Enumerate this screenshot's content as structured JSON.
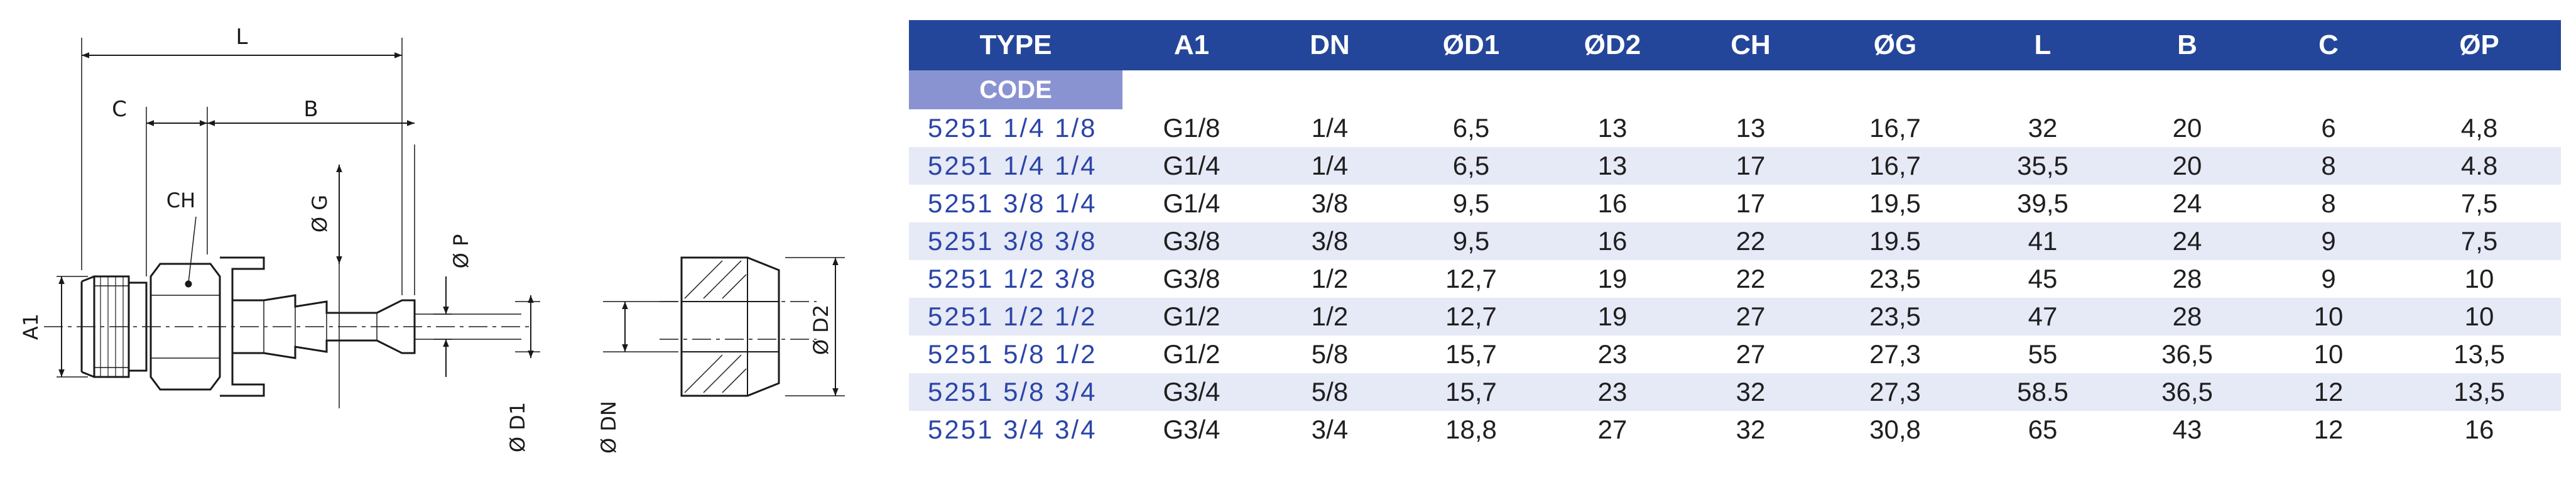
{
  "drawing": {
    "dims": {
      "L": "L",
      "C": "C",
      "B": "B",
      "CH": "CH",
      "G": "Ø G",
      "P": "Ø P",
      "A1": "A1",
      "D1": "Ø D1",
      "DN": "Ø DN",
      "D2": "Ø D2"
    }
  },
  "table": {
    "headers": [
      "TYPE",
      "A1",
      "DN",
      "ØD1",
      "ØD2",
      "CH",
      "ØG",
      "L",
      "B",
      "C",
      "ØP"
    ],
    "code_label": "CODE",
    "rows": [
      {
        "code": "5251 1/4 1/8",
        "values": [
          "G1/8",
          "1/4",
          "6,5",
          "13",
          "13",
          "16,7",
          "32",
          "20",
          "6",
          "4,8"
        ]
      },
      {
        "code": "5251 1/4 1/4",
        "values": [
          "G1/4",
          "1/4",
          "6,5",
          "13",
          "17",
          "16,7",
          "35,5",
          "20",
          "8",
          "4.8"
        ]
      },
      {
        "code": "5251 3/8 1/4",
        "values": [
          "G1/4",
          "3/8",
          "9,5",
          "16",
          "17",
          "19,5",
          "39,5",
          "24",
          "8",
          "7,5"
        ]
      },
      {
        "code": "5251 3/8 3/8",
        "values": [
          "G3/8",
          "3/8",
          "9,5",
          "16",
          "22",
          "19.5",
          "41",
          "24",
          "9",
          "7,5"
        ]
      },
      {
        "code": "5251 1/2 3/8",
        "values": [
          "G3/8",
          "1/2",
          "12,7",
          "19",
          "22",
          "23,5",
          "45",
          "28",
          "9",
          "10"
        ]
      },
      {
        "code": "5251 1/2 1/2",
        "values": [
          "G1/2",
          "1/2",
          "12,7",
          "19",
          "27",
          "23,5",
          "47",
          "28",
          "10",
          "10"
        ]
      },
      {
        "code": "5251 5/8 1/2",
        "values": [
          "G1/2",
          "5/8",
          "15,7",
          "23",
          "27",
          "27,3",
          "55",
          "36,5",
          "10",
          "13,5"
        ]
      },
      {
        "code": "5251 5/8 3/4",
        "values": [
          "G3/4",
          "5/8",
          "15,7",
          "23",
          "32",
          "27,3",
          "58.5",
          "36,5",
          "12",
          "13,5"
        ]
      },
      {
        "code": "5251 3/4 3/4",
        "values": [
          "G3/4",
          "3/4",
          "18,8",
          "27",
          "32",
          "30,8",
          "65",
          "43",
          "12",
          "16"
        ]
      }
    ]
  },
  "colors": {
    "header_bg": "#24469a",
    "code_bg": "#8a93d2",
    "stripe": "#e6e9f6",
    "code_text": "#2a45a8"
  }
}
